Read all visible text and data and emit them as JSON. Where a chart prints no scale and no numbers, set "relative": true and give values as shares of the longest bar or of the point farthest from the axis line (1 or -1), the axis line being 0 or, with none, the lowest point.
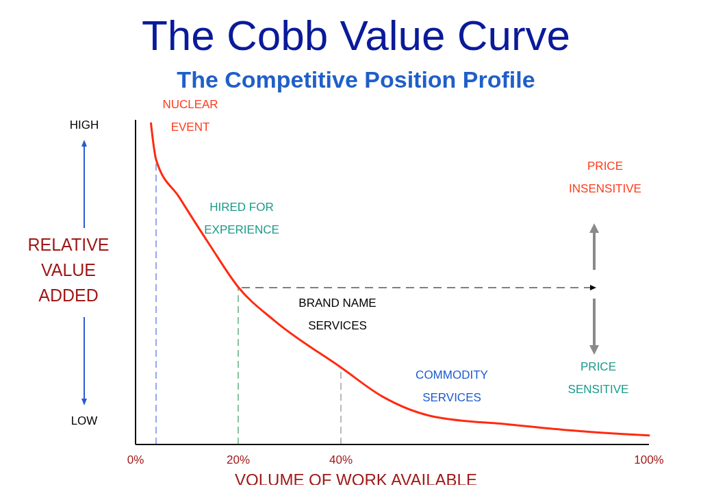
{
  "chart_data": {
    "type": "line",
    "title": "The Cobb Value Curve",
    "subtitle": "The Competitive Position Profile",
    "xlabel": "VOLUME OF WORK AVAILABLE",
    "ylabel": "RELATIVE VALUE ADDED",
    "relative": true,
    "x": [
      3,
      4,
      8.5,
      14.5,
      20,
      27,
      40,
      48,
      58,
      73,
      84,
      100
    ],
    "series": [
      {
        "color": "#ff2a10",
        "values": [
          1,
          0.887,
          0.77,
          0.62,
          0.49,
          0.386,
          0.24,
          0.15,
          0.087,
          0.062,
          0.045,
          0.028
        ]
      }
    ],
    "xlim": [
      0,
      100
    ],
    "xticks": [
      {
        "value": 0,
        "label": "0%"
      },
      {
        "value": 20,
        "label": "20%"
      },
      {
        "value": 40,
        "label": "40%"
      },
      {
        "value": 100,
        "label": "100%"
      }
    ],
    "ref_lines": [
      {
        "axis": "x",
        "value": 4,
        "color": "#4f6fe0",
        "line_style": "dashed"
      },
      {
        "axis": "x",
        "value": 20,
        "color": "#3a9a5a",
        "line_style": "dashed"
      },
      {
        "axis": "x",
        "value": 40,
        "color": "#8a8a8a",
        "line_style": "dashed"
      }
    ],
    "annotations": [
      "HIGH",
      "LOW",
      "NUCLEAR EVENT",
      "HIRED FOR EXPERIENCE",
      "BRAND NAME SERVICES",
      "COMMODITY SERVICES",
      "PRICE INSENSITIVE",
      "PRICE SENSITIVE"
    ],
    "grid": false,
    "legend": false,
    "marker": "none",
    "line_style": "solid"
  }
}
